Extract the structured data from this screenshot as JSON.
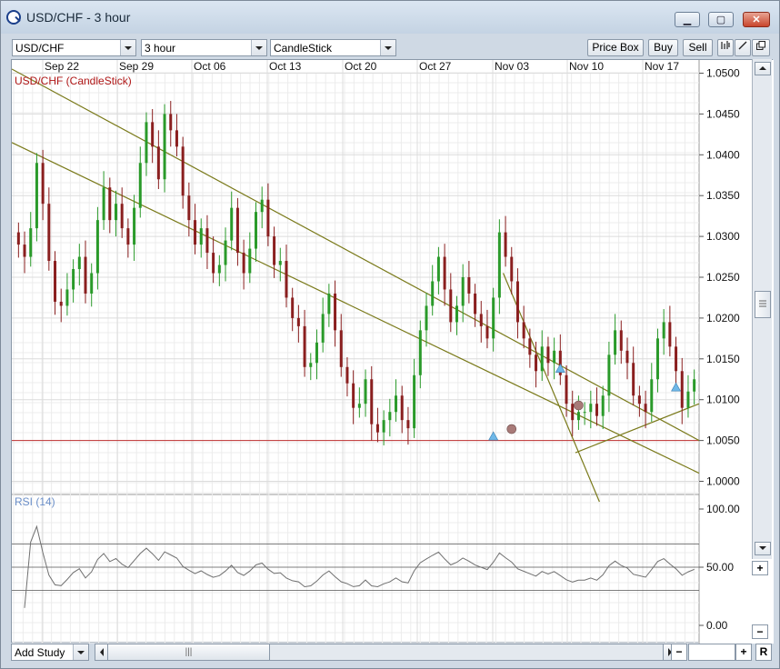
{
  "window": {
    "title": "USD/CHF - 3 hour",
    "minimize_icon": "minimize-icon",
    "restore_icon": "restore-icon",
    "close_icon": "close-icon"
  },
  "toolbar": {
    "symbol": "USD/CHF",
    "timeframe": "3 hour",
    "chart_type": "CandleStick",
    "price_box_label": "Price Box",
    "buy_label": "Buy",
    "sell_label": "Sell"
  },
  "chart_data": {
    "type": "candlestick",
    "series_label": "USD/CHF (CandleStick)",
    "x_ticks": [
      "Sep 22",
      "Sep 29",
      "Oct 06",
      "Oct 13",
      "Oct 20",
      "Oct 27",
      "Nov 03",
      "Nov 10",
      "Nov 17"
    ],
    "y_ticks": [
      "1.0500",
      "1.0450",
      "1.0400",
      "1.0350",
      "1.0300",
      "1.0250",
      "1.0200",
      "1.0150",
      "1.0100",
      "1.0050",
      "1.0000"
    ],
    "ylim": [
      0.9995,
      1.0505
    ],
    "horizontal_line": 1.005,
    "closes": [
      1.029,
      1.0275,
      1.031,
      1.039,
      1.034,
      1.027,
      1.022,
      1.0215,
      1.0235,
      1.026,
      1.0275,
      1.023,
      1.0255,
      1.032,
      1.036,
      1.032,
      1.034,
      1.031,
      1.029,
      1.0335,
      1.039,
      1.044,
      1.041,
      1.037,
      1.045,
      1.043,
      1.041,
      1.035,
      1.032,
      1.029,
      1.031,
      1.028,
      1.0255,
      1.0265,
      1.0295,
      1.0335,
      1.028,
      1.0255,
      1.0285,
      1.033,
      1.0345,
      1.03,
      1.0265,
      1.027,
      1.0225,
      1.02,
      1.019,
      1.014,
      1.0145,
      1.017,
      1.0205,
      1.023,
      1.0185,
      1.014,
      1.012,
      1.009,
      1.0095,
      1.0125,
      1.007,
      1.006,
      1.0075,
      1.0085,
      1.0105,
      1.0075,
      1.0065,
      1.013,
      1.0185,
      1.0215,
      1.0245,
      1.0275,
      1.0235,
      1.0195,
      1.0215,
      1.025,
      1.023,
      1.0205,
      1.019,
      1.0175,
      1.0225,
      1.0305,
      1.0275,
      1.0245,
      1.0195,
      1.0175,
      1.0155,
      1.0135,
      1.0165,
      1.0145,
      1.016,
      1.013,
      1.0095,
      1.0075,
      1.0085,
      1.0085,
      1.0095,
      1.008,
      1.0105,
      1.0155,
      1.0185,
      1.016,
      1.0145,
      1.0105,
      1.0095,
      1.0085,
      1.0125,
      1.0175,
      1.0195,
      1.0165,
      1.0135,
      1.009,
      1.011,
      1.0125
    ],
    "trendlines": [
      {
        "x0": 0,
        "y0": 1.0505,
        "x1": 1,
        "y1": 1.005
      },
      {
        "x0": 0,
        "y0": 1.0415,
        "x1": 1,
        "y1": 1.001
      },
      {
        "x0": 0.715,
        "y0": 1.0255,
        "x1": 0.855,
        "y1": 0.9975
      },
      {
        "x0": 0.82,
        "y0": 1.0035,
        "x1": 1,
        "y1": 1.0095
      }
    ],
    "markers": [
      {
        "shape": "triangle",
        "idx": 78,
        "y": 1.0055
      },
      {
        "shape": "circle",
        "idx": 81,
        "y": 1.0064
      },
      {
        "shape": "triangle",
        "idx": 89,
        "y": 1.0138
      },
      {
        "shape": "circle",
        "idx": 92,
        "y": 1.0093
      },
      {
        "shape": "triangle",
        "idx": 108,
        "y": 1.0115
      }
    ],
    "rsi": {
      "label": "RSI (14)",
      "y_ticks": [
        "100.00",
        "50.00",
        "0.00"
      ],
      "levels": [
        70,
        50,
        30
      ]
    }
  },
  "bottom": {
    "add_study_label": "Add Study",
    "scroll_thumb": "|||",
    "minus_label": "−",
    "plus_label": "+",
    "reset_label": "R"
  },
  "colors": {
    "up": "#2a9a2a",
    "down": "#8a1f1f",
    "trend": "#7a7a1a",
    "hline": "#c03030",
    "marker_tri": "#6fb8e8",
    "marker_circ": "#a87a78",
    "rsi": "#707070",
    "series_label": "#b01818",
    "rsi_label": "#6a8ec8"
  }
}
